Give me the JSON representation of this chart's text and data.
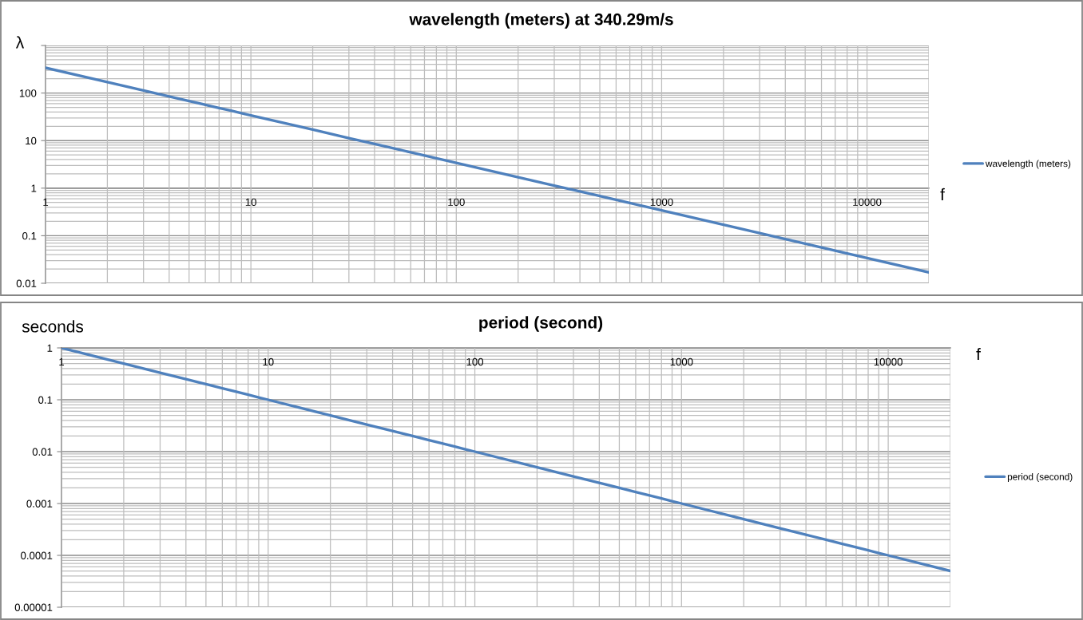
{
  "chart_data": [
    {
      "type": "line",
      "title": "wavelength (meters) at 340.29m/s",
      "xlabel": "f",
      "ylabel": "λ",
      "log": "xy",
      "grid": true,
      "legend": "right",
      "x": [
        1,
        2,
        3,
        4,
        5,
        6,
        7,
        8,
        9,
        10,
        20,
        30,
        40,
        50,
        60,
        70,
        80,
        90,
        100,
        200,
        300,
        400,
        500,
        600,
        700,
        800,
        900,
        1000,
        2000,
        3000,
        4000,
        5000,
        6000,
        7000,
        8000,
        9000,
        10000,
        20000
      ],
      "series": [
        {
          "name": "wavelength (meters)",
          "color": "#4f81bd",
          "values": [
            340,
            170,
            113,
            85.1,
            68.1,
            56.7,
            48.6,
            42.5,
            37.8,
            34,
            17,
            11.3,
            8.51,
            6.81,
            5.67,
            4.86,
            4.25,
            3.78,
            3.4,
            1.7,
            1.13,
            0.851,
            0.681,
            0.567,
            0.486,
            0.425,
            0.378,
            0.34,
            0.17,
            0.113,
            0.0851,
            0.0681,
            0.0567,
            0.0486,
            0.0425,
            0.0378,
            0.034,
            0.017
          ]
        }
      ],
      "xlim": [
        1,
        20000
      ],
      "ylim": [
        0.01,
        1000
      ],
      "xticks": [
        1,
        10,
        100,
        1000,
        10000
      ],
      "yticks": [
        0.01,
        0.1,
        1,
        10,
        100,
        {
          "value": 1000,
          "label": null
        }
      ]
    },
    {
      "type": "line",
      "title": "period (second)",
      "xlabel": "f",
      "ylabel": "seconds",
      "log": "xy",
      "grid": true,
      "legend": "right",
      "x": [
        1,
        2,
        3,
        4,
        5,
        6,
        7,
        8,
        9,
        10,
        20,
        30,
        40,
        50,
        60,
        70,
        80,
        90,
        100,
        200,
        300,
        400,
        500,
        600,
        700,
        800,
        900,
        1000,
        2000,
        3000,
        4000,
        5000,
        6000,
        7000,
        8000,
        9000,
        10000,
        20000
      ],
      "series": [
        {
          "name": "period (second)",
          "color": "#4f81bd",
          "values": [
            1,
            0.5,
            0.333,
            0.25,
            0.2,
            0.167,
            0.143,
            0.125,
            0.111,
            0.1,
            0.05,
            0.0333,
            0.025,
            0.02,
            0.0167,
            0.0143,
            0.0125,
            0.0111,
            0.01,
            0.005,
            0.00333,
            0.0025,
            0.002,
            0.00167,
            0.00143,
            0.00125,
            0.00111,
            0.001,
            0.0005,
            0.000333,
            0.00025,
            0.0002,
            0.000167,
            0.000143,
            0.000125,
            0.000111,
            0.0001,
            5e-05
          ]
        }
      ],
      "xlim": [
        1,
        20000
      ],
      "ylim": [
        1e-05,
        1
      ],
      "xticks": [
        1,
        10,
        100,
        1000,
        10000
      ],
      "yticks": [
        {
          "value": 1e-05,
          "label": "0.00001"
        },
        0.0001,
        0.001,
        0.01,
        0.1,
        1
      ]
    }
  ]
}
